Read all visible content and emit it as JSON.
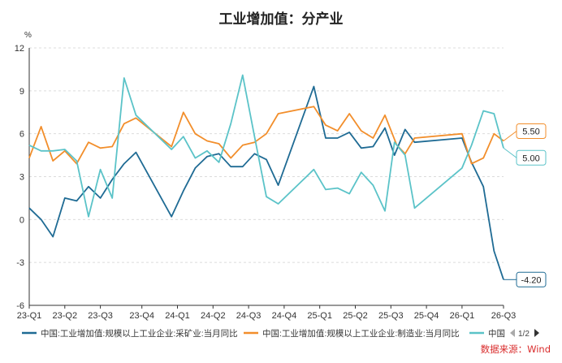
{
  "chart_data": {
    "type": "line",
    "title": "工业增加值：分产业",
    "ylabel": "%",
    "ylim": [
      -6,
      12
    ],
    "yticks": [
      -6,
      -3,
      0,
      3,
      6,
      9,
      12
    ],
    "x_range": [
      0,
      40
    ],
    "grid": true,
    "x_tick_labels": [
      {
        "pos": 0,
        "label": "23-Q1"
      },
      {
        "pos": 3,
        "label": "23-Q2"
      },
      {
        "pos": 6,
        "label": "23-Q3"
      },
      {
        "pos": 9.5,
        "label": "23-Q4"
      },
      {
        "pos": 12.5,
        "label": "24-Q1"
      },
      {
        "pos": 15.5,
        "label": "24-Q2"
      },
      {
        "pos": 18.5,
        "label": "24-Q3"
      },
      {
        "pos": 21.5,
        "label": "24-Q4"
      },
      {
        "pos": 24.5,
        "label": "25-Q1"
      },
      {
        "pos": 27.5,
        "label": "25-Q2"
      },
      {
        "pos": 30.5,
        "label": "25-Q3"
      },
      {
        "pos": 33.5,
        "label": "25-Q4"
      },
      {
        "pos": 36.5,
        "label": "26-Q1"
      },
      {
        "pos": 40,
        "label": "26-Q3"
      }
    ],
    "series": [
      {
        "name": "中国:工业增加值:规模以上工业企业:采矿业:当月同比",
        "color": "#1f6b94",
        "points": [
          [
            0,
            0.8
          ],
          [
            1,
            0.0
          ],
          [
            2,
            -1.2
          ],
          [
            3,
            1.5
          ],
          [
            4,
            1.3
          ],
          [
            5,
            2.3
          ],
          [
            6,
            1.5
          ],
          [
            7,
            2.8
          ],
          [
            8,
            3.9
          ],
          [
            9,
            4.7
          ],
          [
            12,
            0.2
          ],
          [
            13,
            2.0
          ],
          [
            14,
            3.6
          ],
          [
            15,
            4.4
          ],
          [
            16,
            4.6
          ],
          [
            17,
            3.7
          ],
          [
            18,
            3.7
          ],
          [
            19,
            4.6
          ],
          [
            20,
            4.2
          ],
          [
            21,
            2.4
          ],
          [
            24,
            9.3
          ],
          [
            25,
            5.7
          ],
          [
            26,
            5.7
          ],
          [
            27,
            6.1
          ],
          [
            28,
            5.0
          ],
          [
            29,
            5.1
          ],
          [
            30,
            6.4
          ],
          [
            30.8,
            4.5
          ],
          [
            31.7,
            6.3
          ],
          [
            32.5,
            5.4
          ],
          [
            36.5,
            5.7
          ],
          [
            37.3,
            4.0
          ],
          [
            38.3,
            2.3
          ],
          [
            39.2,
            -2.2
          ],
          [
            40,
            -4.2
          ]
        ],
        "end_label": "-4.20"
      },
      {
        "name": "中国:工业增加值:规模以上工业企业:制造业:当月同比",
        "color": "#f28e2b",
        "points": [
          [
            0,
            4.3
          ],
          [
            1,
            6.5
          ],
          [
            2,
            4.1
          ],
          [
            3,
            4.8
          ],
          [
            4,
            3.9
          ],
          [
            5,
            5.4
          ],
          [
            6,
            5.0
          ],
          [
            7,
            5.1
          ],
          [
            8,
            6.7
          ],
          [
            9,
            7.1
          ],
          [
            12,
            5.1
          ],
          [
            13,
            7.5
          ],
          [
            14,
            6.0
          ],
          [
            15,
            5.5
          ],
          [
            16,
            5.3
          ],
          [
            17,
            4.3
          ],
          [
            18,
            5.2
          ],
          [
            19,
            5.4
          ],
          [
            20,
            6.0
          ],
          [
            21,
            7.4
          ],
          [
            24,
            7.9
          ],
          [
            25,
            6.6
          ],
          [
            26,
            6.2
          ],
          [
            27,
            7.4
          ],
          [
            28,
            6.2
          ],
          [
            29,
            5.7
          ],
          [
            30,
            7.3
          ],
          [
            31,
            5.2
          ],
          [
            31.7,
            4.6
          ],
          [
            32.5,
            5.7
          ],
          [
            36.5,
            6.0
          ],
          [
            37.3,
            3.9
          ],
          [
            38.3,
            4.3
          ],
          [
            39.2,
            6.0
          ],
          [
            40,
            5.5
          ]
        ],
        "end_label": "5.50"
      },
      {
        "name": "中国:工业增加值:规模以上工业企业:电力、热力、燃气及水生产和供应业:当月同比",
        "color": "#5bc3c8",
        "points": [
          [
            0,
            5.2
          ],
          [
            1,
            4.8
          ],
          [
            2,
            4.8
          ],
          [
            3,
            4.9
          ],
          [
            4,
            4.1
          ],
          [
            5,
            0.2
          ],
          [
            6,
            3.5
          ],
          [
            7,
            1.5
          ],
          [
            8,
            9.9
          ],
          [
            9,
            7.3
          ],
          [
            12,
            4.9
          ],
          [
            13,
            5.8
          ],
          [
            14,
            4.3
          ],
          [
            15,
            4.8
          ],
          [
            16,
            4.0
          ],
          [
            17,
            6.7
          ],
          [
            18,
            10.1
          ],
          [
            19,
            5.8
          ],
          [
            20,
            1.6
          ],
          [
            21,
            1.1
          ],
          [
            24,
            3.5
          ],
          [
            25,
            2.1
          ],
          [
            26,
            2.2
          ],
          [
            27,
            1.8
          ],
          [
            28,
            3.3
          ],
          [
            29,
            2.4
          ],
          [
            30,
            0.6
          ],
          [
            30.8,
            5.4
          ],
          [
            31.7,
            4.5
          ],
          [
            32.5,
            0.8
          ],
          [
            36.5,
            3.6
          ],
          [
            37.3,
            5.2
          ],
          [
            38.3,
            7.6
          ],
          [
            39.2,
            7.4
          ],
          [
            40,
            5.0
          ]
        ],
        "end_label": "5.00"
      }
    ],
    "legend": {
      "position": "bottom",
      "items": [
        "中国:工业增加值:规模以上工业企业:采矿业:当月同比",
        "中国:工业增加值:规模以上工业企业:制造业:当月同比",
        "中国"
      ],
      "page": "1/2"
    }
  },
  "source": "数据来源：Wind"
}
